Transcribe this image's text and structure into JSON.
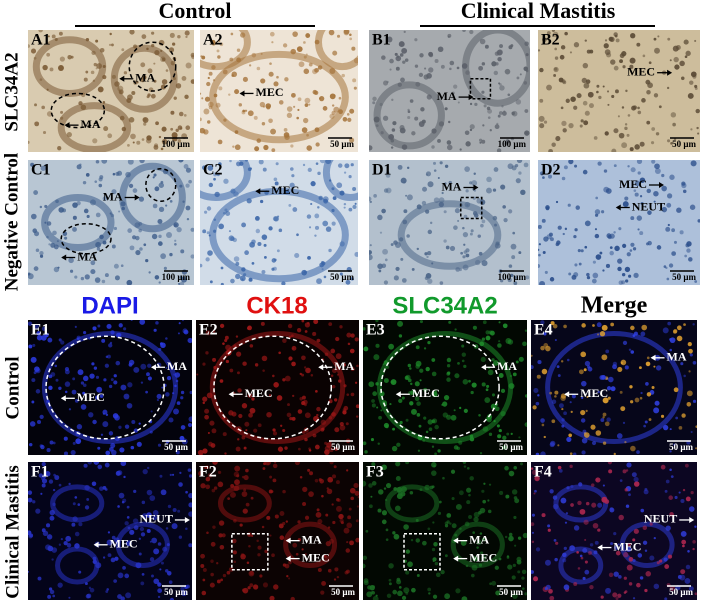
{
  "top_section": {
    "column_groups": [
      "Control",
      "Clinical Mastitis"
    ],
    "row_labels": [
      "SLC34A2",
      "Negative Control"
    ],
    "panels": [
      {
        "label": "A1",
        "annotations": [
          "MA",
          "MA"
        ],
        "scale_bar": "100 μm"
      },
      {
        "label": "A2",
        "annotations": [
          "MEC"
        ],
        "scale_bar": "50 μm"
      },
      {
        "label": "B1",
        "annotations": [
          "MA"
        ],
        "scale_bar": "100 μm"
      },
      {
        "label": "B2",
        "annotations": [
          "MEC"
        ],
        "scale_bar": "50 μm"
      },
      {
        "label": "C1",
        "annotations": [
          "MA",
          "MA"
        ],
        "scale_bar": "100 μm"
      },
      {
        "label": "C2",
        "annotations": [
          "MEC"
        ],
        "scale_bar": "50 μm"
      },
      {
        "label": "D1",
        "annotations": [
          "MA"
        ],
        "scale_bar": "100 μm"
      },
      {
        "label": "D2",
        "annotations": [
          "MEC",
          "NEUT"
        ],
        "scale_bar": "50 μm"
      }
    ]
  },
  "bottom_section": {
    "channels": [
      "DAPI",
      "CK18",
      "SLC34A2",
      "Merge"
    ],
    "row_labels": [
      "Control",
      "Clinical Mastitis"
    ],
    "panels": [
      {
        "label": "E1",
        "annotations": [
          "MA",
          "MEC"
        ],
        "scale_bar": "50 μm"
      },
      {
        "label": "E2",
        "annotations": [
          "MA",
          "MEC"
        ],
        "scale_bar": "50 μm"
      },
      {
        "label": "E3",
        "annotations": [
          "MA",
          "MEC"
        ],
        "scale_bar": "50 μm"
      },
      {
        "label": "E4",
        "annotations": [
          "MA",
          "MEC"
        ],
        "scale_bar": "50 μm"
      },
      {
        "label": "F1",
        "annotations": [
          "NEUT",
          "MEC"
        ],
        "scale_bar": "50 μm"
      },
      {
        "label": "F2",
        "annotations": [
          "MA",
          "MEC"
        ],
        "scale_bar": "50 μm"
      },
      {
        "label": "F3",
        "annotations": [
          "MA",
          "MEC"
        ],
        "scale_bar": "50 μm"
      },
      {
        "label": "F4",
        "annotations": [
          "NEUT",
          "MEC"
        ],
        "scale_bar": "50 μm"
      }
    ]
  }
}
